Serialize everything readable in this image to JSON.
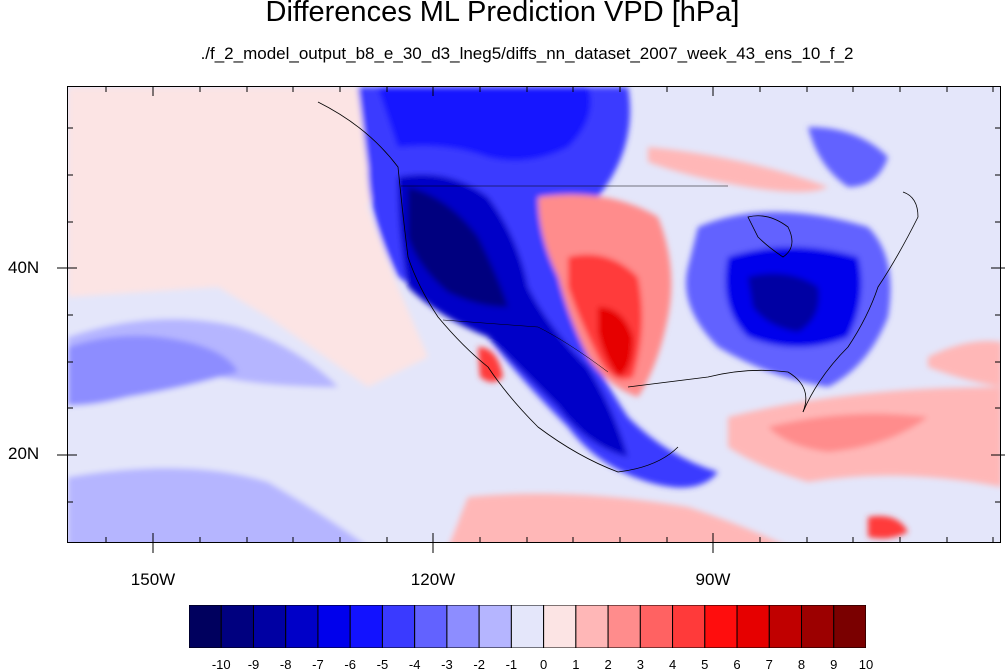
{
  "title": "Differences ML Prediction VPD [hPa]",
  "subtitle": "./f_2_model_output_b8_e_30_d3_lneg5/diffs_nn_dataset_2007_week_43_ens_10_f_2",
  "map": {
    "projection": "cylindrical equidistant",
    "lon_range": [
      -159,
      -60
    ],
    "lat_range": [
      10.5,
      59.5
    ],
    "lat_labels": [
      "40N",
      "20N"
    ],
    "lon_labels": [
      "150W",
      "120W",
      "90W"
    ],
    "field": "VPD difference (hPa)",
    "pattern_notes": "strong negative differences over western US, Rockies and Mexico; positive over southern Plains/Texas; negative over eastern US; weak positive over Caribbean and east Pacific; weak negative over open Pacific"
  },
  "colorbar": {
    "labels": [
      "-10",
      "-9",
      "-8",
      "-7",
      "-6",
      "-5",
      "-4",
      "-3",
      "-2",
      "-1",
      "0",
      "1",
      "2",
      "3",
      "4",
      "5",
      "6",
      "7",
      "8",
      "9",
      "10"
    ],
    "colors": [
      "#00005e",
      "#00007f",
      "#0000a3",
      "#0000c8",
      "#0000ec",
      "#1212ff",
      "#3a3aff",
      "#6262ff",
      "#8d8dff",
      "#b5b5ff",
      "#e4e6fa",
      "#fce4e4",
      "#ffb7b7",
      "#ff8c8c",
      "#ff6262",
      "#ff3a3a",
      "#ff0d0d",
      "#e60000",
      "#c00000",
      "#9c0000",
      "#7a0000"
    ]
  }
}
